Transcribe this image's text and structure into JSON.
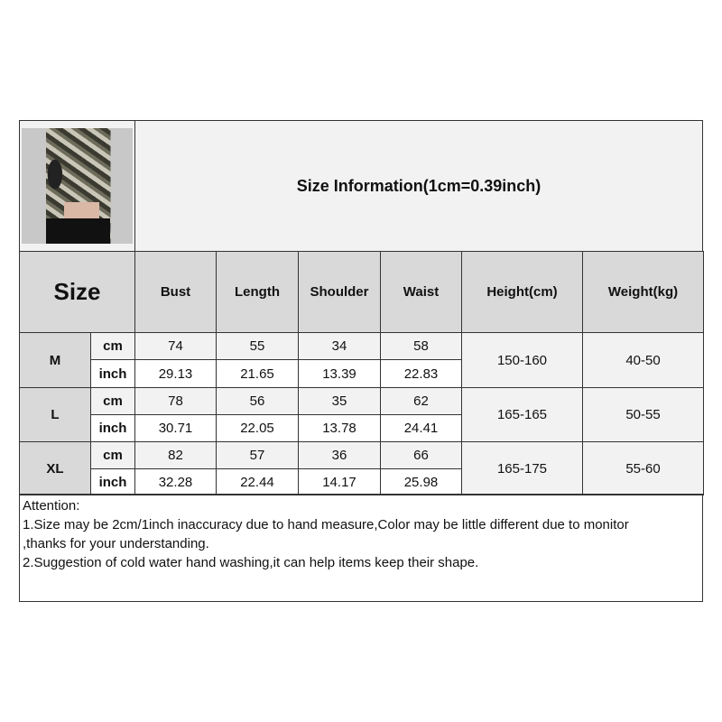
{
  "title": "Size Information(1cm=0.39inch)",
  "header": {
    "size": "Size",
    "columns": [
      "Bust",
      "Length",
      "Shoulder",
      "Waist",
      "Height(cm)",
      "Weight(kg)"
    ]
  },
  "rows": [
    {
      "size": "M",
      "cm": [
        "74",
        "55",
        "34",
        "58"
      ],
      "inch": [
        "29.13",
        "21.65",
        "13.39",
        "22.83"
      ],
      "height": "150-160",
      "weight": "40-50"
    },
    {
      "size": "L",
      "cm": [
        "78",
        "56",
        "35",
        "62"
      ],
      "inch": [
        "30.71",
        "22.05",
        "13.78",
        "24.41"
      ],
      "height": "165-165",
      "weight": "50-55"
    },
    {
      "size": "XL",
      "cm": [
        "82",
        "57",
        "36",
        "66"
      ],
      "inch": [
        "32.28",
        "22.44",
        "14.17",
        "25.98"
      ],
      "height": "165-175",
      "weight": "55-60"
    }
  ],
  "units": {
    "cm": "cm",
    "inch": "inch"
  },
  "attention": {
    "heading": "Attention:",
    "lines": [
      "1.Size may be 2cm/1inch inaccuracy due to hand measure,Color may be little different due to monitor",
      ",thanks for your understanding.",
      "2.Suggestion of cold water hand washing,it can help items keep their shape."
    ]
  },
  "colors": {
    "header_bg": "#d9d9d9",
    "cm_row_bg": "#f2f2f2",
    "inch_row_bg": "#ffffff",
    "border": "#333333"
  }
}
